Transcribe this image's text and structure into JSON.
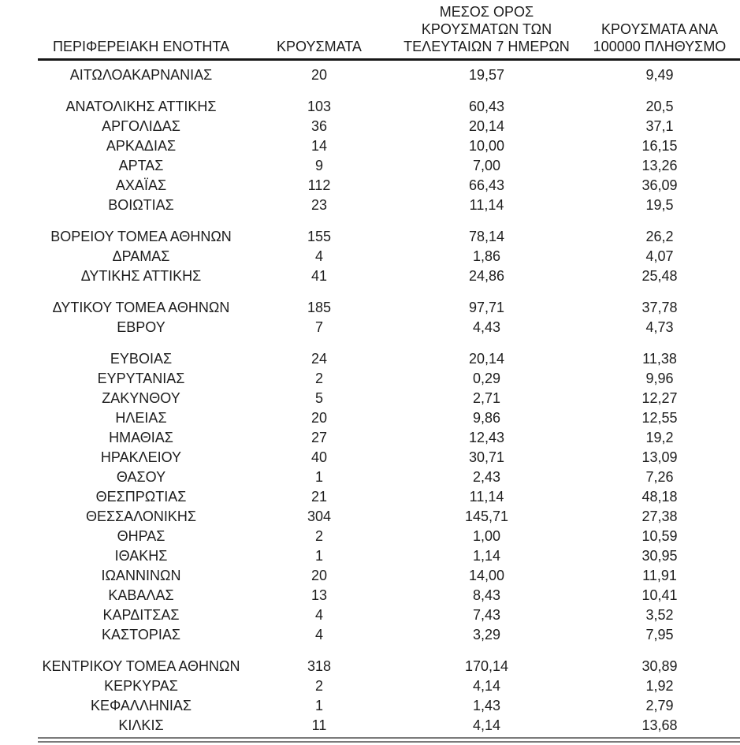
{
  "colors": {
    "background": "#ffffff",
    "text": "#1d1d1d",
    "header_rule": "#171717",
    "bottom_rule": "#7a7a7a"
  },
  "table": {
    "headers": [
      {
        "label": "ΠΕΡΙΦΕΡΕΙΑΚΗ ΕΝΟΤΗΤΑ"
      },
      {
        "label": "ΚΡΟΥΣΜΑΤΑ"
      },
      {
        "label": "ΜΕΣΟΣ ΟΡΟΣ\nΚΡΟΥΣΜΑΤΩΝ ΤΩΝ\nΤΕΛΕΥΤΑΙΩΝ 7 ΗΜΕΡΩΝ"
      },
      {
        "label": "ΚΡΟΥΣΜΑΤΑ ΑΝΑ\n100000 ΠΛΗΘΥΣΜΟ"
      }
    ],
    "rows": [
      {
        "region": "ΑΙΤΩΛΟΑΚΑΡΝΑΝΙΑΣ",
        "cases": "20",
        "avg_7d": "19,57",
        "per_100k": "9,49",
        "group_start": false
      },
      {
        "region": "ΑΝΑΤΟΛΙΚΗΣ ΑΤΤΙΚΗΣ",
        "cases": "103",
        "avg_7d": "60,43",
        "per_100k": "20,5",
        "group_start": true
      },
      {
        "region": "ΑΡΓΟΛΙΔΑΣ",
        "cases": "36",
        "avg_7d": "20,14",
        "per_100k": "37,1",
        "group_start": false
      },
      {
        "region": "ΑΡΚΑΔΙΑΣ",
        "cases": "14",
        "avg_7d": "10,00",
        "per_100k": "16,15",
        "group_start": false
      },
      {
        "region": "ΑΡΤΑΣ",
        "cases": "9",
        "avg_7d": "7,00",
        "per_100k": "13,26",
        "group_start": false
      },
      {
        "region": "ΑΧΑΪΑΣ",
        "cases": "112",
        "avg_7d": "66,43",
        "per_100k": "36,09",
        "group_start": false
      },
      {
        "region": "ΒΟΙΩΤΙΑΣ",
        "cases": "23",
        "avg_7d": "11,14",
        "per_100k": "19,5",
        "group_start": false
      },
      {
        "region": "ΒΟΡΕΙΟΥ ΤΟΜΕΑ ΑΘΗΝΩΝ",
        "cases": "155",
        "avg_7d": "78,14",
        "per_100k": "26,2",
        "group_start": true
      },
      {
        "region": "ΔΡΑΜΑΣ",
        "cases": "4",
        "avg_7d": "1,86",
        "per_100k": "4,07",
        "group_start": false
      },
      {
        "region": "ΔΥΤΙΚΗΣ ΑΤΤΙΚΗΣ",
        "cases": "41",
        "avg_7d": "24,86",
        "per_100k": "25,48",
        "group_start": false
      },
      {
        "region": "ΔΥΤΙΚΟΥ ΤΟΜΕΑ ΑΘΗΝΩΝ",
        "cases": "185",
        "avg_7d": "97,71",
        "per_100k": "37,78",
        "group_start": true
      },
      {
        "region": "ΕΒΡΟΥ",
        "cases": "7",
        "avg_7d": "4,43",
        "per_100k": "4,73",
        "group_start": false
      },
      {
        "region": "ΕΥΒΟΙΑΣ",
        "cases": "24",
        "avg_7d": "20,14",
        "per_100k": "11,38",
        "group_start": true
      },
      {
        "region": "ΕΥΡΥΤΑΝΙΑΣ",
        "cases": "2",
        "avg_7d": "0,29",
        "per_100k": "9,96",
        "group_start": false
      },
      {
        "region": "ΖΑΚΥΝΘΟΥ",
        "cases": "5",
        "avg_7d": "2,71",
        "per_100k": "12,27",
        "group_start": false
      },
      {
        "region": "ΗΛΕΙΑΣ",
        "cases": "20",
        "avg_7d": "9,86",
        "per_100k": "12,55",
        "group_start": false
      },
      {
        "region": "ΗΜΑΘΙΑΣ",
        "cases": "27",
        "avg_7d": "12,43",
        "per_100k": "19,2",
        "group_start": false
      },
      {
        "region": "ΗΡΑΚΛΕΙΟΥ",
        "cases": "40",
        "avg_7d": "30,71",
        "per_100k": "13,09",
        "group_start": false
      },
      {
        "region": "ΘΑΣΟΥ",
        "cases": "1",
        "avg_7d": "2,43",
        "per_100k": "7,26",
        "group_start": false
      },
      {
        "region": "ΘΕΣΠΡΩΤΙΑΣ",
        "cases": "21",
        "avg_7d": "11,14",
        "per_100k": "48,18",
        "group_start": false
      },
      {
        "region": "ΘΕΣΣΑΛΟΝΙΚΗΣ",
        "cases": "304",
        "avg_7d": "145,71",
        "per_100k": "27,38",
        "group_start": false
      },
      {
        "region": "ΘΗΡΑΣ",
        "cases": "2",
        "avg_7d": "1,00",
        "per_100k": "10,59",
        "group_start": false
      },
      {
        "region": "ΙΘΑΚΗΣ",
        "cases": "1",
        "avg_7d": "1,14",
        "per_100k": "30,95",
        "group_start": false
      },
      {
        "region": "ΙΩΑΝΝΙΝΩΝ",
        "cases": "20",
        "avg_7d": "14,00",
        "per_100k": "11,91",
        "group_start": false
      },
      {
        "region": "ΚΑΒΑΛΑΣ",
        "cases": "13",
        "avg_7d": "8,43",
        "per_100k": "10,41",
        "group_start": false
      },
      {
        "region": "ΚΑΡΔΙΤΣΑΣ",
        "cases": "4",
        "avg_7d": "7,43",
        "per_100k": "3,52",
        "group_start": false
      },
      {
        "region": "ΚΑΣΤΟΡΙΑΣ",
        "cases": "4",
        "avg_7d": "3,29",
        "per_100k": "7,95",
        "group_start": false
      },
      {
        "region": "ΚΕΝΤΡΙΚΟΥ ΤΟΜΕΑ ΑΘΗΝΩΝ",
        "cases": "318",
        "avg_7d": "170,14",
        "per_100k": "30,89",
        "group_start": true
      },
      {
        "region": "ΚΕΡΚΥΡΑΣ",
        "cases": "2",
        "avg_7d": "4,14",
        "per_100k": "1,92",
        "group_start": false
      },
      {
        "region": "ΚΕΦΑΛΛΗΝΙΑΣ",
        "cases": "1",
        "avg_7d": "1,43",
        "per_100k": "2,79",
        "group_start": false
      },
      {
        "region": "ΚΙΛΚΙΣ",
        "cases": "11",
        "avg_7d": "4,14",
        "per_100k": "13,68",
        "group_start": false
      }
    ]
  },
  "chart_data": {
    "type": "table",
    "columns": [
      "ΠΕΡΙΦΕΡΕΙΑΚΗ ΕΝΟΤΗΤΑ",
      "ΚΡΟΥΣΜΑΤΑ",
      "ΜΕΣΟΣ ΟΡΟΣ ΚΡΟΥΣΜΑΤΩΝ ΤΩΝ ΤΕΛΕΥΤΑΙΩΝ 7 ΗΜΕΡΩΝ",
      "ΚΡΟΥΣΜΑΤΑ ΑΝΑ 100000 ΠΛΗΘΥΣΜΟ"
    ],
    "rows": [
      [
        "ΑΙΤΩΛΟΑΚΑΡΝΑΝΙΑΣ",
        "20",
        "19,57",
        "9,49"
      ],
      [
        "ΑΝΑΤΟΛΙΚΗΣ ΑΤΤΙΚΗΣ",
        "103",
        "60,43",
        "20,5"
      ],
      [
        "ΑΡΓΟΛΙΔΑΣ",
        "36",
        "20,14",
        "37,1"
      ],
      [
        "ΑΡΚΑΔΙΑΣ",
        "14",
        "10,00",
        "16,15"
      ],
      [
        "ΑΡΤΑΣ",
        "9",
        "7,00",
        "13,26"
      ],
      [
        "ΑΧΑΪΑΣ",
        "112",
        "66,43",
        "36,09"
      ],
      [
        "ΒΟΙΩΤΙΑΣ",
        "23",
        "11,14",
        "19,5"
      ],
      [
        "ΒΟΡΕΙΟΥ ΤΟΜΕΑ ΑΘΗΝΩΝ",
        "155",
        "78,14",
        "26,2"
      ],
      [
        "ΔΡΑΜΑΣ",
        "4",
        "1,86",
        "4,07"
      ],
      [
        "ΔΥΤΙΚΗΣ ΑΤΤΙΚΗΣ",
        "41",
        "24,86",
        "25,48"
      ],
      [
        "ΔΥΤΙΚΟΥ ΤΟΜΕΑ ΑΘΗΝΩΝ",
        "185",
        "97,71",
        "37,78"
      ],
      [
        "ΕΒΡΟΥ",
        "7",
        "4,43",
        "4,73"
      ],
      [
        "ΕΥΒΟΙΑΣ",
        "24",
        "20,14",
        "11,38"
      ],
      [
        "ΕΥΡΥΤΑΝΙΑΣ",
        "2",
        "0,29",
        "9,96"
      ],
      [
        "ΖΑΚΥΝΘΟΥ",
        "5",
        "2,71",
        "12,27"
      ],
      [
        "ΗΛΕΙΑΣ",
        "20",
        "9,86",
        "12,55"
      ],
      [
        "ΗΜΑΘΙΑΣ",
        "27",
        "12,43",
        "19,2"
      ],
      [
        "ΗΡΑΚΛΕΙΟΥ",
        "40",
        "30,71",
        "13,09"
      ],
      [
        "ΘΑΣΟΥ",
        "1",
        "2,43",
        "7,26"
      ],
      [
        "ΘΕΣΠΡΩΤΙΑΣ",
        "21",
        "11,14",
        "48,18"
      ],
      [
        "ΘΕΣΣΑΛΟΝΙΚΗΣ",
        "304",
        "145,71",
        "27,38"
      ],
      [
        "ΘΗΡΑΣ",
        "2",
        "1,00",
        "10,59"
      ],
      [
        "ΙΘΑΚΗΣ",
        "1",
        "1,14",
        "30,95"
      ],
      [
        "ΙΩΑΝΝΙΝΩΝ",
        "20",
        "14,00",
        "11,91"
      ],
      [
        "ΚΑΒΑΛΑΣ",
        "13",
        "8,43",
        "10,41"
      ],
      [
        "ΚΑΡΔΙΤΣΑΣ",
        "4",
        "7,43",
        "3,52"
      ],
      [
        "ΚΑΣΤΟΡΙΑΣ",
        "4",
        "3,29",
        "7,95"
      ],
      [
        "ΚΕΝΤΡΙΚΟΥ ΤΟΜΕΑ ΑΘΗΝΩΝ",
        "318",
        "170,14",
        "30,89"
      ],
      [
        "ΚΕΡΚΥΡΑΣ",
        "2",
        "4,14",
        "1,92"
      ],
      [
        "ΚΕΦΑΛΛΗΝΙΑΣ",
        "1",
        "1,43",
        "2,79"
      ],
      [
        "ΚΙΛΚΙΣ",
        "11",
        "4,14",
        "13,68"
      ]
    ]
  }
}
